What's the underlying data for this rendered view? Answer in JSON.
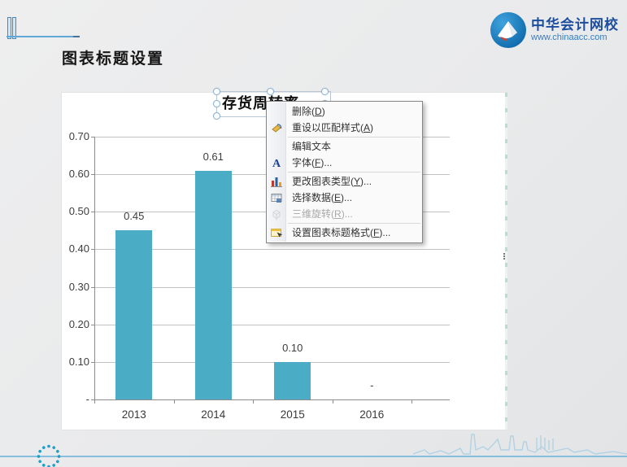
{
  "slide": {
    "title": "图表标题设置",
    "logo": {
      "brand": "中华会计网校",
      "website": "www.chinaacc.com"
    }
  },
  "chart_panel": {
    "title_box_text": "存货周转率"
  },
  "chart_data": {
    "type": "bar",
    "title": "存货周转率",
    "categories": [
      "2013",
      "2014",
      "2015",
      "2016"
    ],
    "values": [
      0.45,
      0.61,
      0.1,
      0
    ],
    "data_labels": [
      "0.45",
      "0.61",
      "0.10",
      "-"
    ],
    "y_tick_labels": [
      "0.70",
      "0.60",
      "0.50",
      "0.40",
      "0.30",
      "0.20",
      "0.10",
      "-"
    ],
    "y_tick_values": [
      0.7,
      0.6,
      0.5,
      0.4,
      0.3,
      0.2,
      0.1,
      0
    ],
    "ylim": [
      0,
      0.7
    ],
    "bar_color": "#4BACC6",
    "grid": true,
    "legend": false
  },
  "context_menu": {
    "items": [
      {
        "name": "delete",
        "label": "删除",
        "key": "D",
        "ellipsis": false,
        "disabled": false,
        "icon": null
      },
      {
        "name": "reset-to-match-style",
        "label": "重设以匹配样式",
        "key": "A",
        "ellipsis": false,
        "disabled": false,
        "icon": "reset-style-icon"
      },
      {
        "separator": true
      },
      {
        "name": "edit-text",
        "label": "编辑文本",
        "key": null,
        "ellipsis": false,
        "disabled": false,
        "icon": null
      },
      {
        "name": "font",
        "label": "字体",
        "key": "F",
        "ellipsis": true,
        "disabled": false,
        "icon": "font-icon"
      },
      {
        "separator": true
      },
      {
        "name": "change-chart-type",
        "label": "更改图表类型",
        "key": "Y",
        "ellipsis": true,
        "disabled": false,
        "icon": "chart-type-icon"
      },
      {
        "name": "select-data",
        "label": "选择数据",
        "key": "E",
        "ellipsis": true,
        "disabled": false,
        "icon": "select-data-icon"
      },
      {
        "name": "3d-rotation",
        "label": "三维旋转",
        "key": "R",
        "ellipsis": true,
        "disabled": true,
        "icon": "rotation-3d-icon"
      },
      {
        "separator": true
      },
      {
        "name": "format-chart-title",
        "label": "设置图表标题格式",
        "key": "F",
        "ellipsis": true,
        "disabled": false,
        "icon": "format-chart-title-icon"
      }
    ]
  }
}
